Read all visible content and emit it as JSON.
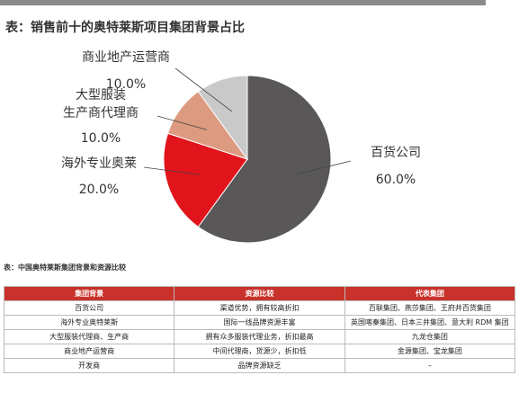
{
  "chart_data": {
    "type": "pie",
    "title": "表：销售前十的奥特莱斯项目集团背景占比",
    "categories": [
      "百货公司",
      "海外专业奥莱",
      "大型服装\n生产商代理商",
      "商业地产运营商"
    ],
    "values": [
      60,
      20,
      10,
      10
    ],
    "value_labels": [
      "60.0%",
      "20.0%",
      "10.0%",
      "10.0%"
    ],
    "colors": [
      "#595757",
      "#e1141c",
      "#dc9a80",
      "#c9c9c9"
    ]
  },
  "table": {
    "title": "表：中国奥特莱斯集团背景和资源比较",
    "header": [
      "集团背景",
      "资源比较",
      "代表集团"
    ],
    "rows": [
      [
        "百货公司",
        "渠道优势，拥有较高折扣",
        "百联集团、燕莎集团、王府井百货集团"
      ],
      [
        "海外专业奥特莱斯",
        "国际一线品牌资源丰富",
        "英国喀秦集团、日本三井集团、意大利 RDM 集团"
      ],
      [
        "大型服装代理商、生产商",
        "拥有众多服装代理业务，折扣最高",
        "九龙仓集团"
      ],
      [
        "商业地产运营商",
        "中间代理商，货源少，折扣低",
        "金源集团、宝龙集团"
      ],
      [
        "开发商",
        "品牌资源缺乏",
        "–"
      ]
    ]
  }
}
